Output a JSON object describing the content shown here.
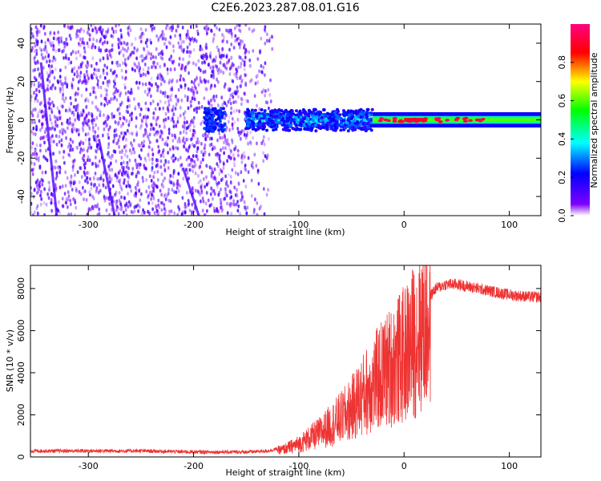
{
  "figure": {
    "title": "C2E6.2023.287.08.01.G16"
  },
  "chart_data": [
    {
      "type": "heatmap",
      "xlabel": "Height of straight line (km)",
      "ylabel": "Frequency (Hz)",
      "xlim": [
        -355,
        130
      ],
      "ylim": [
        -50,
        50
      ],
      "x_ticks": [
        -300,
        -200,
        -100,
        0,
        100
      ],
      "y_ticks": [
        -40,
        -20,
        0,
        20,
        40
      ],
      "x_tick_labels": [
        "-300",
        "-200",
        "-100",
        "0",
        "100"
      ],
      "y_tick_labels": [
        "-40",
        "-20",
        "0",
        "20",
        "40"
      ],
      "grid": false,
      "description_regions": [
        {
          "x_range": [
            -355,
            -150
          ],
          "freq_range": [
            -50,
            50
          ],
          "amplitude": "low",
          "note": "scattered noise"
        },
        {
          "x_range": [
            -150,
            -30
          ],
          "freq_range": [
            -6,
            6
          ],
          "amplitude": "mid"
        },
        {
          "x_range": [
            -30,
            130
          ],
          "freq_range": [
            -2,
            2
          ],
          "amplitude": "high"
        }
      ],
      "colorbar": {
        "label": "Normalized spectral amplitude",
        "range": [
          0,
          1
        ],
        "ticks": [
          0.0,
          0.2,
          0.4,
          0.6,
          0.8
        ],
        "tick_labels": [
          "0.0",
          "0.2",
          "0.4",
          "0.6",
          "0.8"
        ],
        "colors": [
          "#ffffff",
          "#7f00ff",
          "#0000ff",
          "#00ffff",
          "#00ff00",
          "#ffff00",
          "#ff0000",
          "#ff0080"
        ]
      }
    },
    {
      "type": "line",
      "xlabel": "Height of straight line (km)",
      "ylabel": "SNR (10 * v/v)",
      "xlim": [
        -355,
        130
      ],
      "ylim": [
        0,
        9100
      ],
      "x_ticks": [
        -300,
        -200,
        -100,
        0,
        100
      ],
      "y_ticks": [
        0,
        2000,
        4000,
        6000,
        8000
      ],
      "x_tick_labels": [
        "-300",
        "-200",
        "-100",
        "0",
        "100"
      ],
      "y_tick_labels": [
        "0",
        "2000",
        "4000",
        "6000",
        "8000"
      ],
      "grid": false,
      "series": [
        {
          "color": "#ee3333",
          "x": [
            -355,
            -300,
            -250,
            -200,
            -170,
            -150,
            -130,
            -115,
            -100,
            -90,
            -80,
            -70,
            -60,
            -50,
            -40,
            -30,
            -20,
            -10,
            0,
            10,
            20,
            30,
            40,
            50,
            60,
            70,
            80,
            90,
            100,
            110,
            120,
            130
          ],
          "y": [
            250,
            250,
            250,
            200,
            200,
            200,
            250,
            400,
            700,
            1000,
            1300,
            1700,
            2100,
            2600,
            3300,
            3900,
            4500,
            5000,
            5500,
            6300,
            7300,
            8000,
            8200,
            8200,
            8100,
            8000,
            7900,
            7800,
            7700,
            7650,
            7600,
            7600
          ]
        }
      ]
    }
  ]
}
